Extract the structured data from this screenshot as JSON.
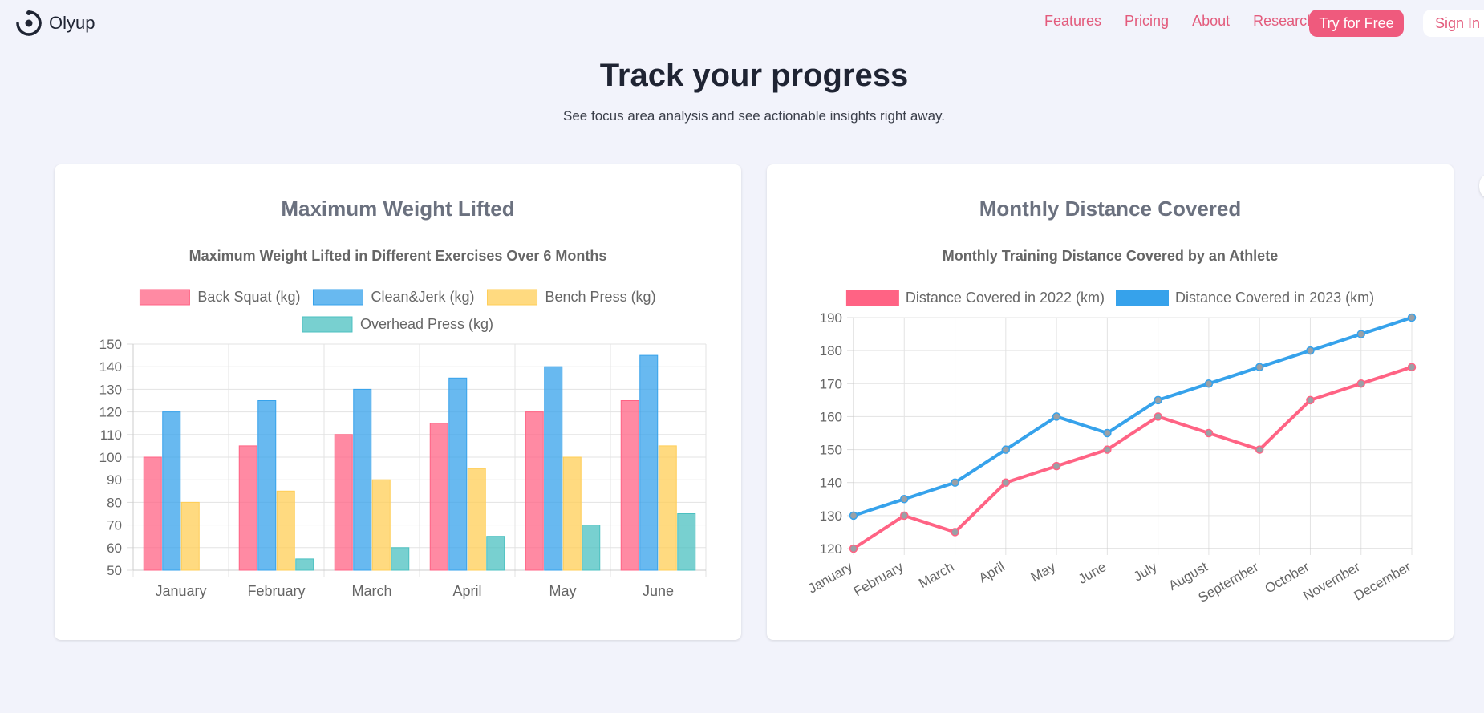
{
  "brand": {
    "name": "Olyup"
  },
  "nav": {
    "links": [
      "Features",
      "Pricing",
      "About",
      "Research"
    ],
    "try_label": "Try for Free",
    "signin_label": "Sign In"
  },
  "hero": {
    "title": "Track your progress",
    "subtitle": "See focus area analysis and see actionable insights right away."
  },
  "cards": {
    "left_title": "Maximum Weight Lifted",
    "right_title": "Monthly Distance Covered"
  },
  "colors": {
    "accent": "#ef5a7d",
    "pink": "#ff6384",
    "blue": "#36a2eb",
    "yellow": "#ffcd56",
    "teal": "#4bc0c0"
  },
  "chart_data": [
    {
      "type": "bar",
      "title": "Maximum Weight Lifted in Different Exercises Over 6 Months",
      "categories": [
        "January",
        "February",
        "March",
        "April",
        "May",
        "June"
      ],
      "series": [
        {
          "name": "Back Squat (kg)",
          "values": [
            100,
            105,
            110,
            115,
            120,
            125
          ],
          "color": "#ff6384"
        },
        {
          "name": "Clean&Jerk (kg)",
          "values": [
            120,
            125,
            130,
            135,
            140,
            145
          ],
          "color": "#36a2eb"
        },
        {
          "name": "Bench Press (kg)",
          "values": [
            80,
            85,
            90,
            95,
            100,
            105
          ],
          "color": "#ffcd56"
        },
        {
          "name": "Overhead Press (kg)",
          "values": [
            50,
            55,
            60,
            65,
            70,
            75
          ],
          "color": "#4bc0c0"
        }
      ],
      "ylim": [
        50,
        150
      ],
      "yticks": [
        50,
        60,
        70,
        80,
        90,
        100,
        110,
        120,
        130,
        140,
        150
      ],
      "grid": true,
      "legend": "top"
    },
    {
      "type": "line",
      "title": "Monthly Training Distance Covered by an Athlete",
      "categories": [
        "January",
        "February",
        "March",
        "April",
        "May",
        "June",
        "July",
        "August",
        "September",
        "October",
        "November",
        "December"
      ],
      "series": [
        {
          "name": "Distance Covered in 2022 (km)",
          "values": [
            120,
            130,
            125,
            140,
            145,
            150,
            160,
            155,
            150,
            165,
            170,
            175
          ],
          "color": "#ff6384"
        },
        {
          "name": "Distance Covered in 2023 (km)",
          "values": [
            130,
            135,
            140,
            150,
            160,
            155,
            165,
            170,
            175,
            180,
            185,
            190
          ],
          "color": "#36a2eb"
        }
      ],
      "ylim": [
        120,
        190
      ],
      "yticks": [
        120,
        130,
        140,
        150,
        160,
        170,
        180,
        190
      ],
      "grid": true,
      "legend": "top"
    }
  ]
}
